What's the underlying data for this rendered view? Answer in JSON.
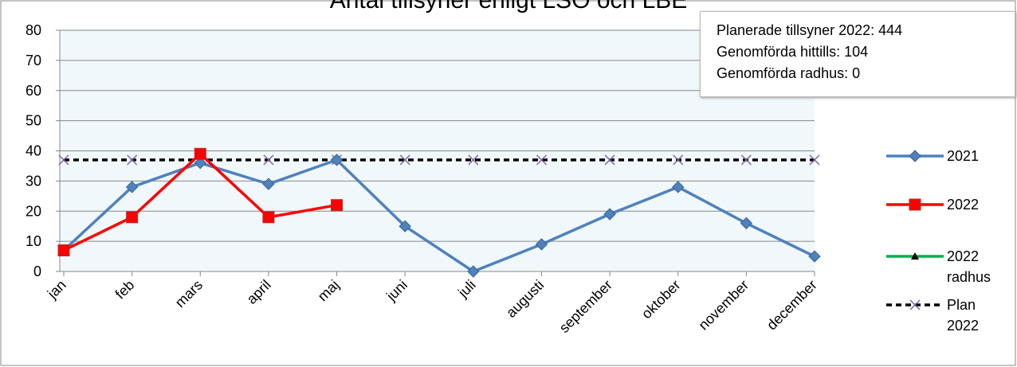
{
  "chart_data": {
    "type": "line",
    "title": "Antal tillsyner enligt LSO och LBE",
    "categories": [
      "jan",
      "feb",
      "mars",
      "april",
      "maj",
      "juni",
      "juli",
      "augusti",
      "september",
      "oktober",
      "november",
      "december"
    ],
    "series": [
      {
        "name": "2021",
        "color": "#4f81bd",
        "marker": "diamond",
        "values": [
          7,
          28,
          36,
          29,
          37,
          15,
          0,
          9,
          19,
          28,
          16,
          5
        ]
      },
      {
        "name": "2022",
        "color": "#ff0000",
        "marker": "square",
        "values": [
          7,
          18,
          39,
          18,
          22,
          null,
          null,
          null,
          null,
          null,
          null,
          null
        ]
      },
      {
        "name": "2022 radhus",
        "color": "#00b050",
        "marker": "triangle",
        "values": [
          null,
          null,
          null,
          null,
          null,
          null,
          null,
          null,
          null,
          null,
          null,
          null
        ]
      },
      {
        "name": "Plan 2022",
        "color": "#000000",
        "marker": "x",
        "dash": true,
        "values": [
          37,
          37,
          37,
          37,
          37,
          37,
          37,
          37,
          37,
          37,
          37,
          37
        ]
      }
    ],
    "ylim": [
      0,
      80
    ],
    "yticks": [
      0,
      10,
      20,
      30,
      40,
      50,
      60,
      70,
      80
    ],
    "grid": true,
    "annotations": [
      "Planerade tillsyner 2022: 444",
      "Genomförda hittills: 104",
      "Genomförda radhus: 0"
    ]
  }
}
